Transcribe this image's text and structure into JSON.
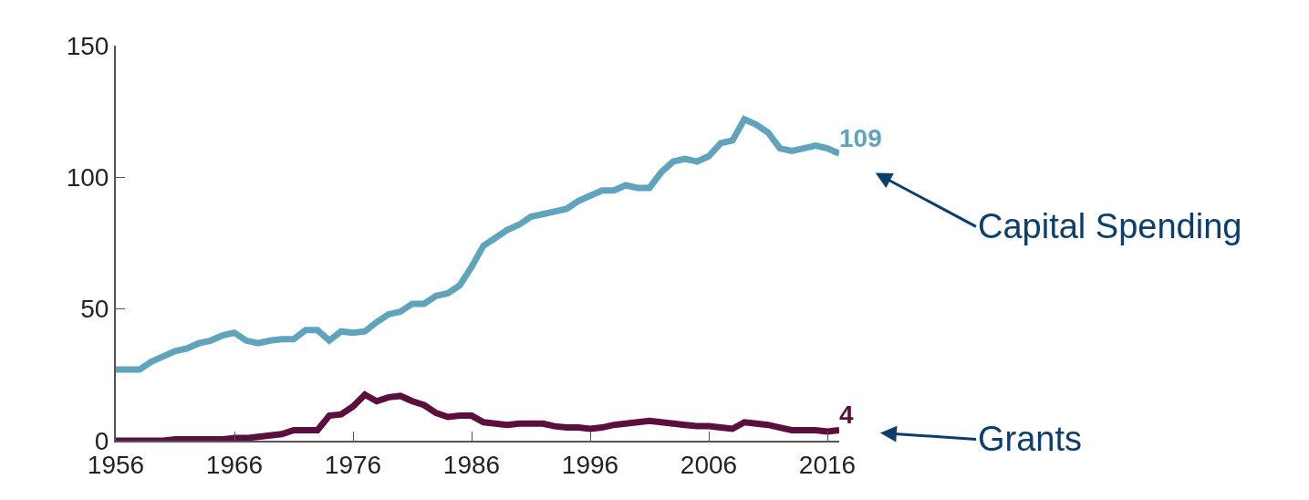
{
  "chart_data": {
    "type": "line",
    "x": [
      1956,
      1957,
      1958,
      1959,
      1960,
      1961,
      1962,
      1963,
      1964,
      1965,
      1966,
      1967,
      1968,
      1969,
      1970,
      1971,
      1972,
      1973,
      1974,
      1975,
      1976,
      1977,
      1978,
      1979,
      1980,
      1981,
      1982,
      1983,
      1984,
      1985,
      1986,
      1987,
      1988,
      1989,
      1990,
      1991,
      1992,
      1993,
      1994,
      1995,
      1996,
      1997,
      1998,
      1999,
      2000,
      2001,
      2002,
      2003,
      2004,
      2005,
      2006,
      2007,
      2008,
      2009,
      2010,
      2011,
      2012,
      2013,
      2014,
      2015,
      2016,
      2017
    ],
    "series": [
      {
        "color": "#5fa3bd",
        "values": [
          27,
          27,
          27,
          30,
          32,
          34,
          35,
          37,
          38,
          40,
          41,
          38,
          37,
          38,
          38.5,
          38.5,
          42,
          42,
          38,
          41.5,
          41,
          41.5,
          45,
          48,
          49,
          52,
          52,
          55,
          56,
          59,
          66,
          74,
          77,
          80,
          82,
          85,
          86,
          87,
          88,
          91,
          93,
          95,
          95,
          97,
          96,
          96,
          102,
          106,
          107,
          106,
          108,
          113,
          114,
          122,
          120,
          117,
          111,
          110,
          111,
          112,
          111,
          109
        ],
        "value_labels": [
          null,
          null,
          null,
          null,
          null,
          null,
          null,
          null,
          null,
          null,
          null,
          null,
          null,
          null,
          null,
          null,
          null,
          null,
          null,
          null,
          null,
          null,
          null,
          null,
          null,
          null,
          null,
          null,
          null,
          null,
          null,
          null,
          null,
          null,
          null,
          null,
          null,
          null,
          null,
          null,
          null,
          null,
          null,
          null,
          null,
          null,
          null,
          null,
          null,
          null,
          null,
          null,
          null,
          null,
          null,
          null,
          null,
          null,
          null,
          null,
          null,
          "109"
        ]
      },
      {
        "color": "#5a0f3e",
        "values": [
          0,
          0,
          0,
          0,
          0,
          0.5,
          0.5,
          0.5,
          0.5,
          0.5,
          1,
          1,
          1.5,
          2,
          2.5,
          4,
          4,
          4,
          9.5,
          10,
          13,
          17.5,
          15,
          16.5,
          17,
          15,
          13.5,
          10.5,
          9,
          9.5,
          9.5,
          7,
          6.5,
          6,
          6.5,
          6.5,
          6.5,
          5.5,
          5,
          5,
          4.5,
          5,
          6,
          6.5,
          7,
          7.5,
          7,
          6.5,
          6,
          5.5,
          5.5,
          5,
          4.5,
          7,
          6.5,
          6,
          5,
          4,
          4,
          4,
          3.5,
          4
        ],
        "value_labels": [
          null,
          null,
          null,
          null,
          null,
          null,
          null,
          null,
          null,
          null,
          null,
          null,
          null,
          null,
          null,
          null,
          null,
          null,
          null,
          null,
          null,
          null,
          null,
          null,
          null,
          null,
          null,
          null,
          null,
          null,
          null,
          null,
          null,
          null,
          null,
          null,
          null,
          null,
          null,
          null,
          null,
          null,
          null,
          null,
          null,
          null,
          null,
          null,
          null,
          null,
          null,
          null,
          null,
          null,
          null,
          null,
          null,
          null,
          null,
          null,
          null,
          "4"
        ]
      }
    ],
    "annotations": [
      {
        "text": "Capital Spending",
        "x": 2017,
        "y": 109
      },
      {
        "text": "Grants",
        "x": 2017,
        "y": 4
      }
    ],
    "xlim": [
      1956,
      2017
    ],
    "xticks": [
      1956,
      1966,
      1976,
      1986,
      1996,
      2006,
      2016
    ],
    "ylim": [
      0,
      150
    ],
    "yticks": [
      0,
      50,
      100,
      150
    ],
    "marker": "none",
    "line_style": "solid"
  }
}
